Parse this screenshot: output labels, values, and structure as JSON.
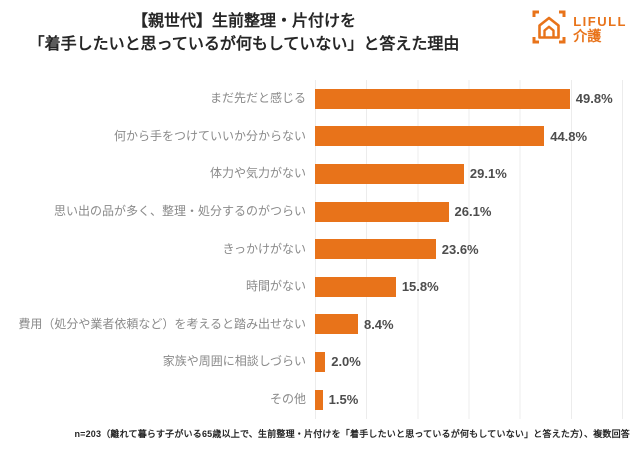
{
  "header": {
    "title_line1": "【親世代】生前整理・片付けを",
    "title_line2": "「着手したいと思っているが何もしていない」と答えた理由",
    "logo": {
      "brand": "LIFULL",
      "sub": "介護",
      "icon": "lifull-kaigo-house-icon",
      "color": "#E8731A"
    }
  },
  "chart_data": {
    "type": "bar",
    "orientation": "horizontal",
    "title": "【親世代】生前整理・片付けを「着手したいと思っているが何もしていない」と答えた理由",
    "categories": [
      "まだ先だと感じる",
      "何から手をつけていいか分からない",
      "体力や気力がない",
      "思い出の品が多く、整理・処分するのがつらい",
      "きっかけがない",
      "時間がない",
      "費用（処分や業者依頼など）を考えると踏み出せない",
      "家族や周囲に相談しづらい",
      "その他"
    ],
    "values": [
      49.8,
      44.8,
      29.1,
      26.1,
      23.6,
      15.8,
      8.4,
      2.0,
      1.5
    ],
    "value_labels": [
      "49.8%",
      "44.8%",
      "29.1%",
      "26.1%",
      "23.6%",
      "15.8%",
      "8.4%",
      "2.0%",
      "1.5%"
    ],
    "xlabel": "",
    "ylabel": "",
    "xlim": [
      0,
      60
    ],
    "grid": "vertical gridlines every 10%",
    "legend": "none",
    "bar_color": "#E8731A"
  },
  "footer": {
    "note": "n=203（離れて暮らす子がいる65歳以上で、生前整理・片付けを「着手したいと思っているが何もしていない」と答えた方）、複数回答"
  }
}
